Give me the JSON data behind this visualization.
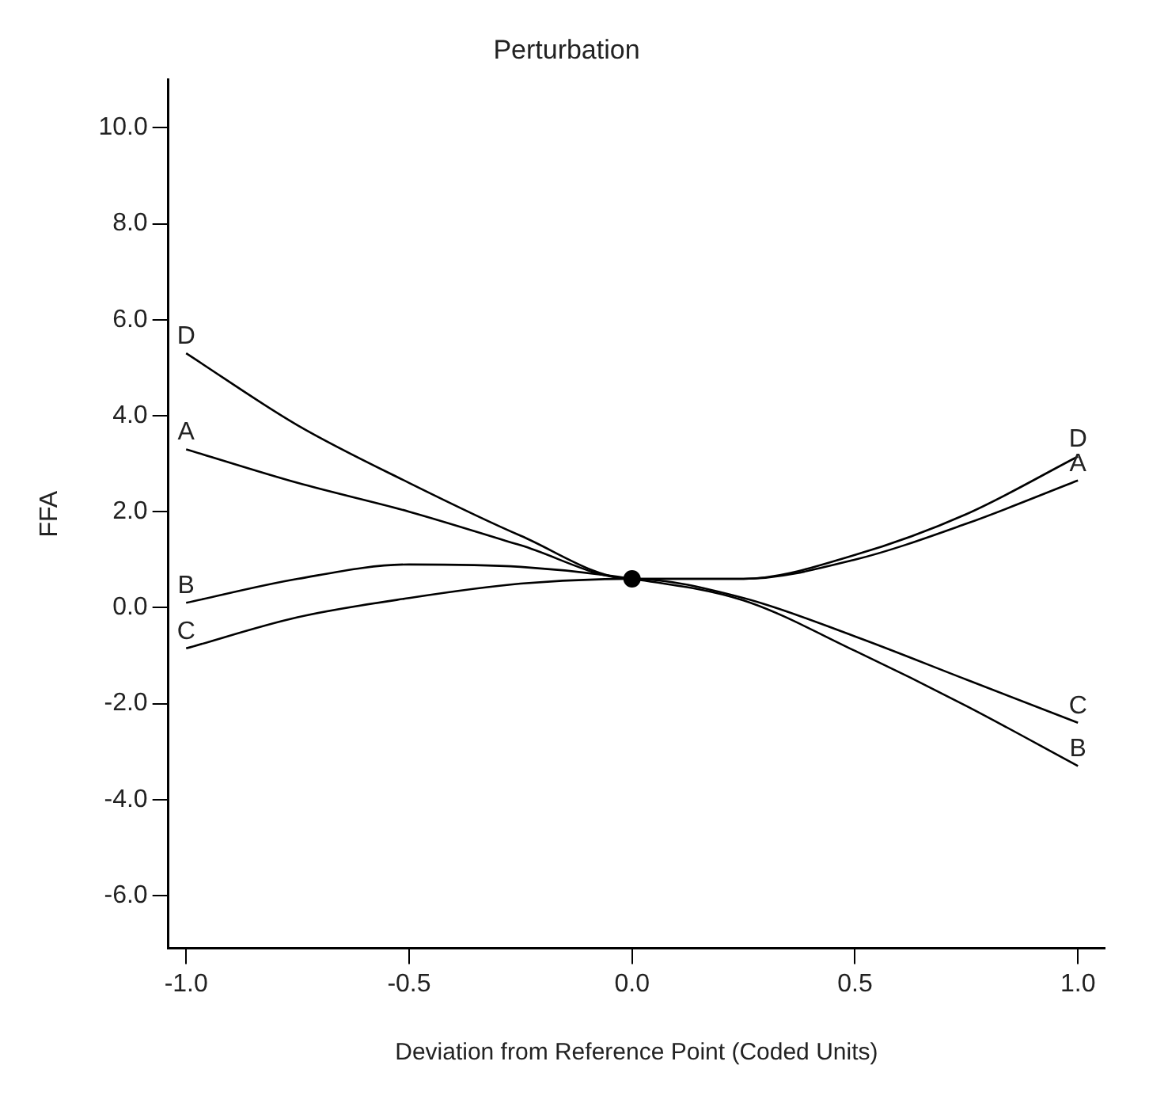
{
  "chart_data": {
    "type": "line",
    "title": "Perturbation",
    "xlabel": "Deviation from Reference Point (Coded Units)",
    "ylabel": "FFA",
    "x": [
      -1,
      -0.75,
      -0.5,
      -0.25,
      0,
      0.25,
      0.5,
      0.75,
      1
    ],
    "series": [
      {
        "name": "D",
        "color": "#000000",
        "values": [
          5.3,
          3.8,
          2.6,
          1.5,
          0.6,
          0.6,
          1.1,
          1.95,
          3.15
        ]
      },
      {
        "name": "A",
        "color": "#000000",
        "values": [
          3.3,
          2.6,
          2.0,
          1.3,
          0.6,
          0.6,
          1.0,
          1.75,
          2.65
        ]
      },
      {
        "name": "B",
        "color": "#000000",
        "values": [
          0.1,
          0.6,
          0.9,
          0.85,
          0.6,
          0.15,
          -0.9,
          -2.05,
          -3.3
        ]
      },
      {
        "name": "C",
        "color": "#000000",
        "values": [
          -0.85,
          -0.2,
          0.2,
          0.5,
          0.6,
          0.2,
          -0.6,
          -1.5,
          -2.4
        ]
      },
      {
        "type": "scatter",
        "color": "#000000",
        "x": [
          0
        ],
        "values": [
          0.6
        ],
        "marker": "circle"
      }
    ],
    "xlim": [
      -1.04,
      1.06
    ],
    "ylim": [
      -7.1,
      11.0
    ],
    "xticks": [
      {
        "value": -1,
        "label": "-1.0"
      },
      {
        "value": -0.5,
        "label": "-0.5"
      },
      {
        "value": 0,
        "label": "0.0"
      },
      {
        "value": 0.5,
        "label": "0.5"
      },
      {
        "value": 1,
        "label": "1.0"
      }
    ],
    "yticks": [
      {
        "value": -6,
        "label": "-6.0"
      },
      {
        "value": -4,
        "label": "-4.0"
      },
      {
        "value": -2,
        "label": "-2.0"
      },
      {
        "value": 0,
        "label": "0.0"
      },
      {
        "value": 2,
        "label": "2.0"
      },
      {
        "value": 4,
        "label": "4.0"
      },
      {
        "value": 6,
        "label": "6.0"
      },
      {
        "value": 8,
        "label": "8.0"
      },
      {
        "value": 10,
        "label": "10.0"
      }
    ],
    "grid": false,
    "legend": false,
    "marker": "none",
    "line_style": "solid"
  }
}
